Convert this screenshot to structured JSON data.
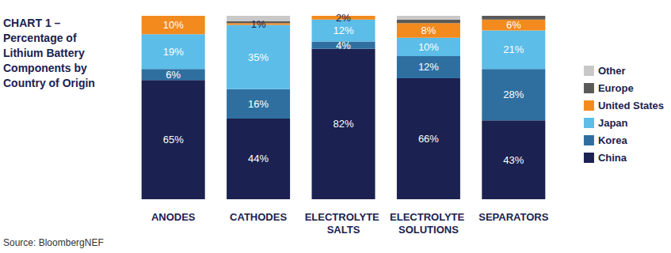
{
  "chart_data": {
    "type": "bar",
    "stacked": true,
    "data_labels": true,
    "grid": false,
    "tick_labels": "x",
    "legend": "right",
    "title": "CHART 1 – Percentage of Lithium Battery Components by Country of Origin",
    "source": "Source: BloombergNEF",
    "categories": [
      "ANODES",
      "CATHODES",
      "ELECTROLYTE SALTS",
      "ELECTROLYTE SOLUTIONS",
      "SEPARATORS"
    ],
    "ylim": [
      0,
      100
    ],
    "series": [
      {
        "name": "China",
        "color": "#1b2150",
        "values": [
          65,
          44,
          82,
          66,
          43
        ],
        "value_labels": [
          "65%",
          "44%",
          "82%",
          "66%",
          "43%"
        ]
      },
      {
        "name": "Korea",
        "color": "#2f6fa0",
        "values": [
          6,
          16,
          4,
          12,
          28
        ],
        "value_labels": [
          "6%",
          "16%",
          "4%",
          "12%",
          "28%"
        ]
      },
      {
        "name": "Japan",
        "color": "#5bbde8",
        "values": [
          19,
          35,
          12,
          10,
          21
        ],
        "value_labels": [
          "19%",
          "35%",
          "12%",
          "10%",
          "21%"
        ]
      },
      {
        "name": "United States",
        "color": "#f28a1e",
        "values": [
          10,
          1,
          2,
          8,
          6
        ],
        "value_labels": [
          "10%",
          "1%",
          "2%",
          "8%",
          "6%"
        ]
      },
      {
        "name": "Europe",
        "color": "#5a5a5a",
        "values": [
          0,
          1,
          0,
          2,
          2
        ],
        "value_labels": [
          null,
          null,
          null,
          null,
          null
        ]
      },
      {
        "name": "Other",
        "color": "#c8c8c8",
        "values": [
          0,
          3,
          0,
          2,
          0
        ],
        "value_labels": [
          null,
          null,
          null,
          null,
          null
        ]
      }
    ]
  }
}
